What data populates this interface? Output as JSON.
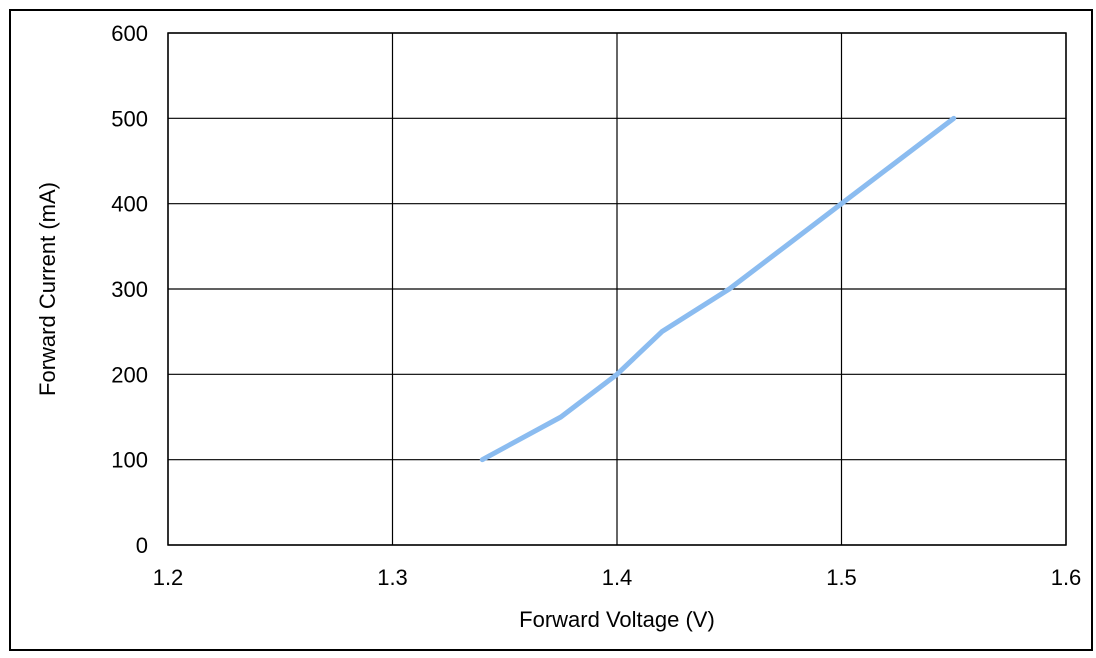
{
  "chart_data": {
    "type": "line",
    "title": "",
    "xlabel": "Forward Voltage (V)",
    "ylabel": "Forward Current (mA)",
    "xlim": [
      1.2,
      1.6
    ],
    "ylim": [
      0,
      600
    ],
    "x_ticks": [
      "1.2",
      "1.3",
      "1.4",
      "1.5",
      "1.6"
    ],
    "y_ticks": [
      "0",
      "100",
      "200",
      "300",
      "400",
      "500",
      "600"
    ],
    "grid": true,
    "legend": "none",
    "series": [
      {
        "color": "#8bbcf0",
        "x": [
          1.34,
          1.375,
          1.4,
          1.42,
          1.45,
          1.475,
          1.5,
          1.525,
          1.55
        ],
        "y": [
          100,
          150,
          200,
          250,
          300,
          350,
          400,
          450,
          500
        ]
      }
    ]
  },
  "colors": {
    "axis": "#000000",
    "grid": "#000000",
    "line": "#8bbcf0",
    "background": "#ffffff"
  }
}
